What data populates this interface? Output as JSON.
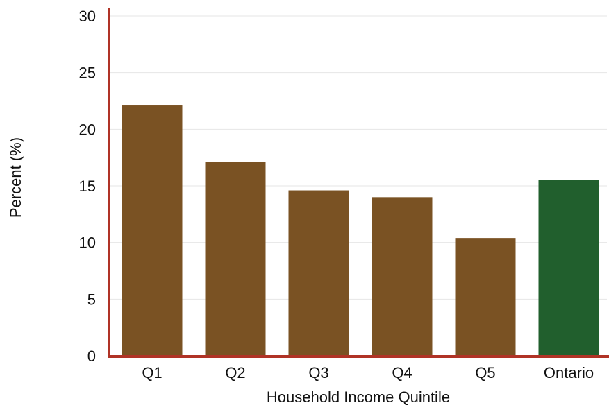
{
  "chart_data": {
    "type": "bar",
    "title": "",
    "xlabel": "Household Income Quintile",
    "ylabel": "Percent (%)",
    "categories": [
      "Q1",
      "Q2",
      "Q3",
      "Q4",
      "Q5",
      "Ontario"
    ],
    "values": [
      22.1,
      17.1,
      14.6,
      14.0,
      10.4,
      15.5
    ],
    "ylim": [
      0,
      30
    ],
    "yticks": [
      0,
      5,
      10,
      15,
      20,
      25,
      30
    ],
    "grid": true,
    "legend": "none",
    "colors": {
      "bar": "#7a5223",
      "highlight_bar": "#215f2d",
      "axis": "#b03326",
      "grid": "#e6e6e6"
    },
    "highlight_category": "Ontario"
  }
}
